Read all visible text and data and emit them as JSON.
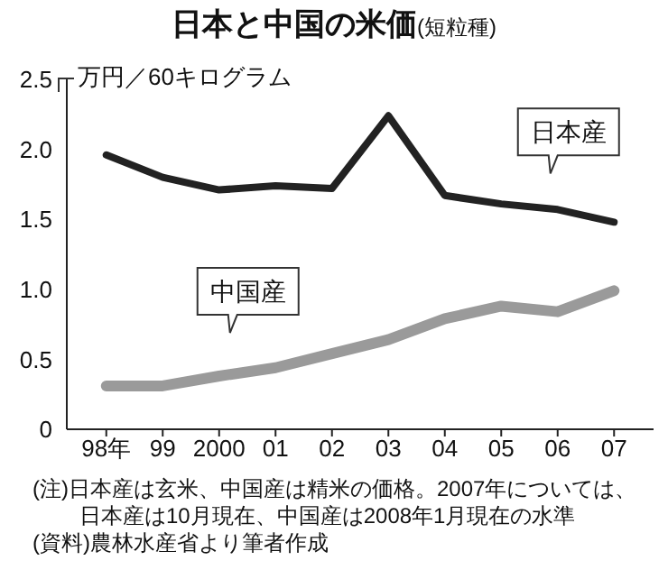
{
  "chart_data": {
    "type": "line",
    "title": "日本と中国の米価",
    "subtitle": "(短粒種)",
    "ylabel": "万円／60キログラム",
    "categories": [
      "98年",
      "99",
      "2000",
      "01",
      "02",
      "03",
      "04",
      "05",
      "06",
      "07"
    ],
    "series": [
      {
        "name": "日本産",
        "color": "#222222",
        "values": [
          1.96,
          1.8,
          1.71,
          1.74,
          1.72,
          2.24,
          1.67,
          1.61,
          1.57,
          1.48
        ]
      },
      {
        "name": "中国産",
        "color": "#9a9a9a",
        "values": [
          0.31,
          0.31,
          0.38,
          0.44,
          0.54,
          0.64,
          0.79,
          0.88,
          0.84,
          0.99
        ]
      }
    ],
    "ylim": [
      0,
      2.5
    ],
    "yticks": [
      0,
      0.5,
      {
        "value": 1,
        "label": "1.0"
      },
      1.5,
      {
        "value": 2,
        "label": "2.0"
      },
      2.5
    ],
    "grid": false,
    "legend": false,
    "marker": "none",
    "line_style": "solid",
    "annotations": [
      "(注)日本産は玄米、中国産は精米の価格。2007年については、日本産は10月現在、中国産は2008年1月現在の水準",
      "(資料)農林水産省より筆者作成"
    ]
  }
}
